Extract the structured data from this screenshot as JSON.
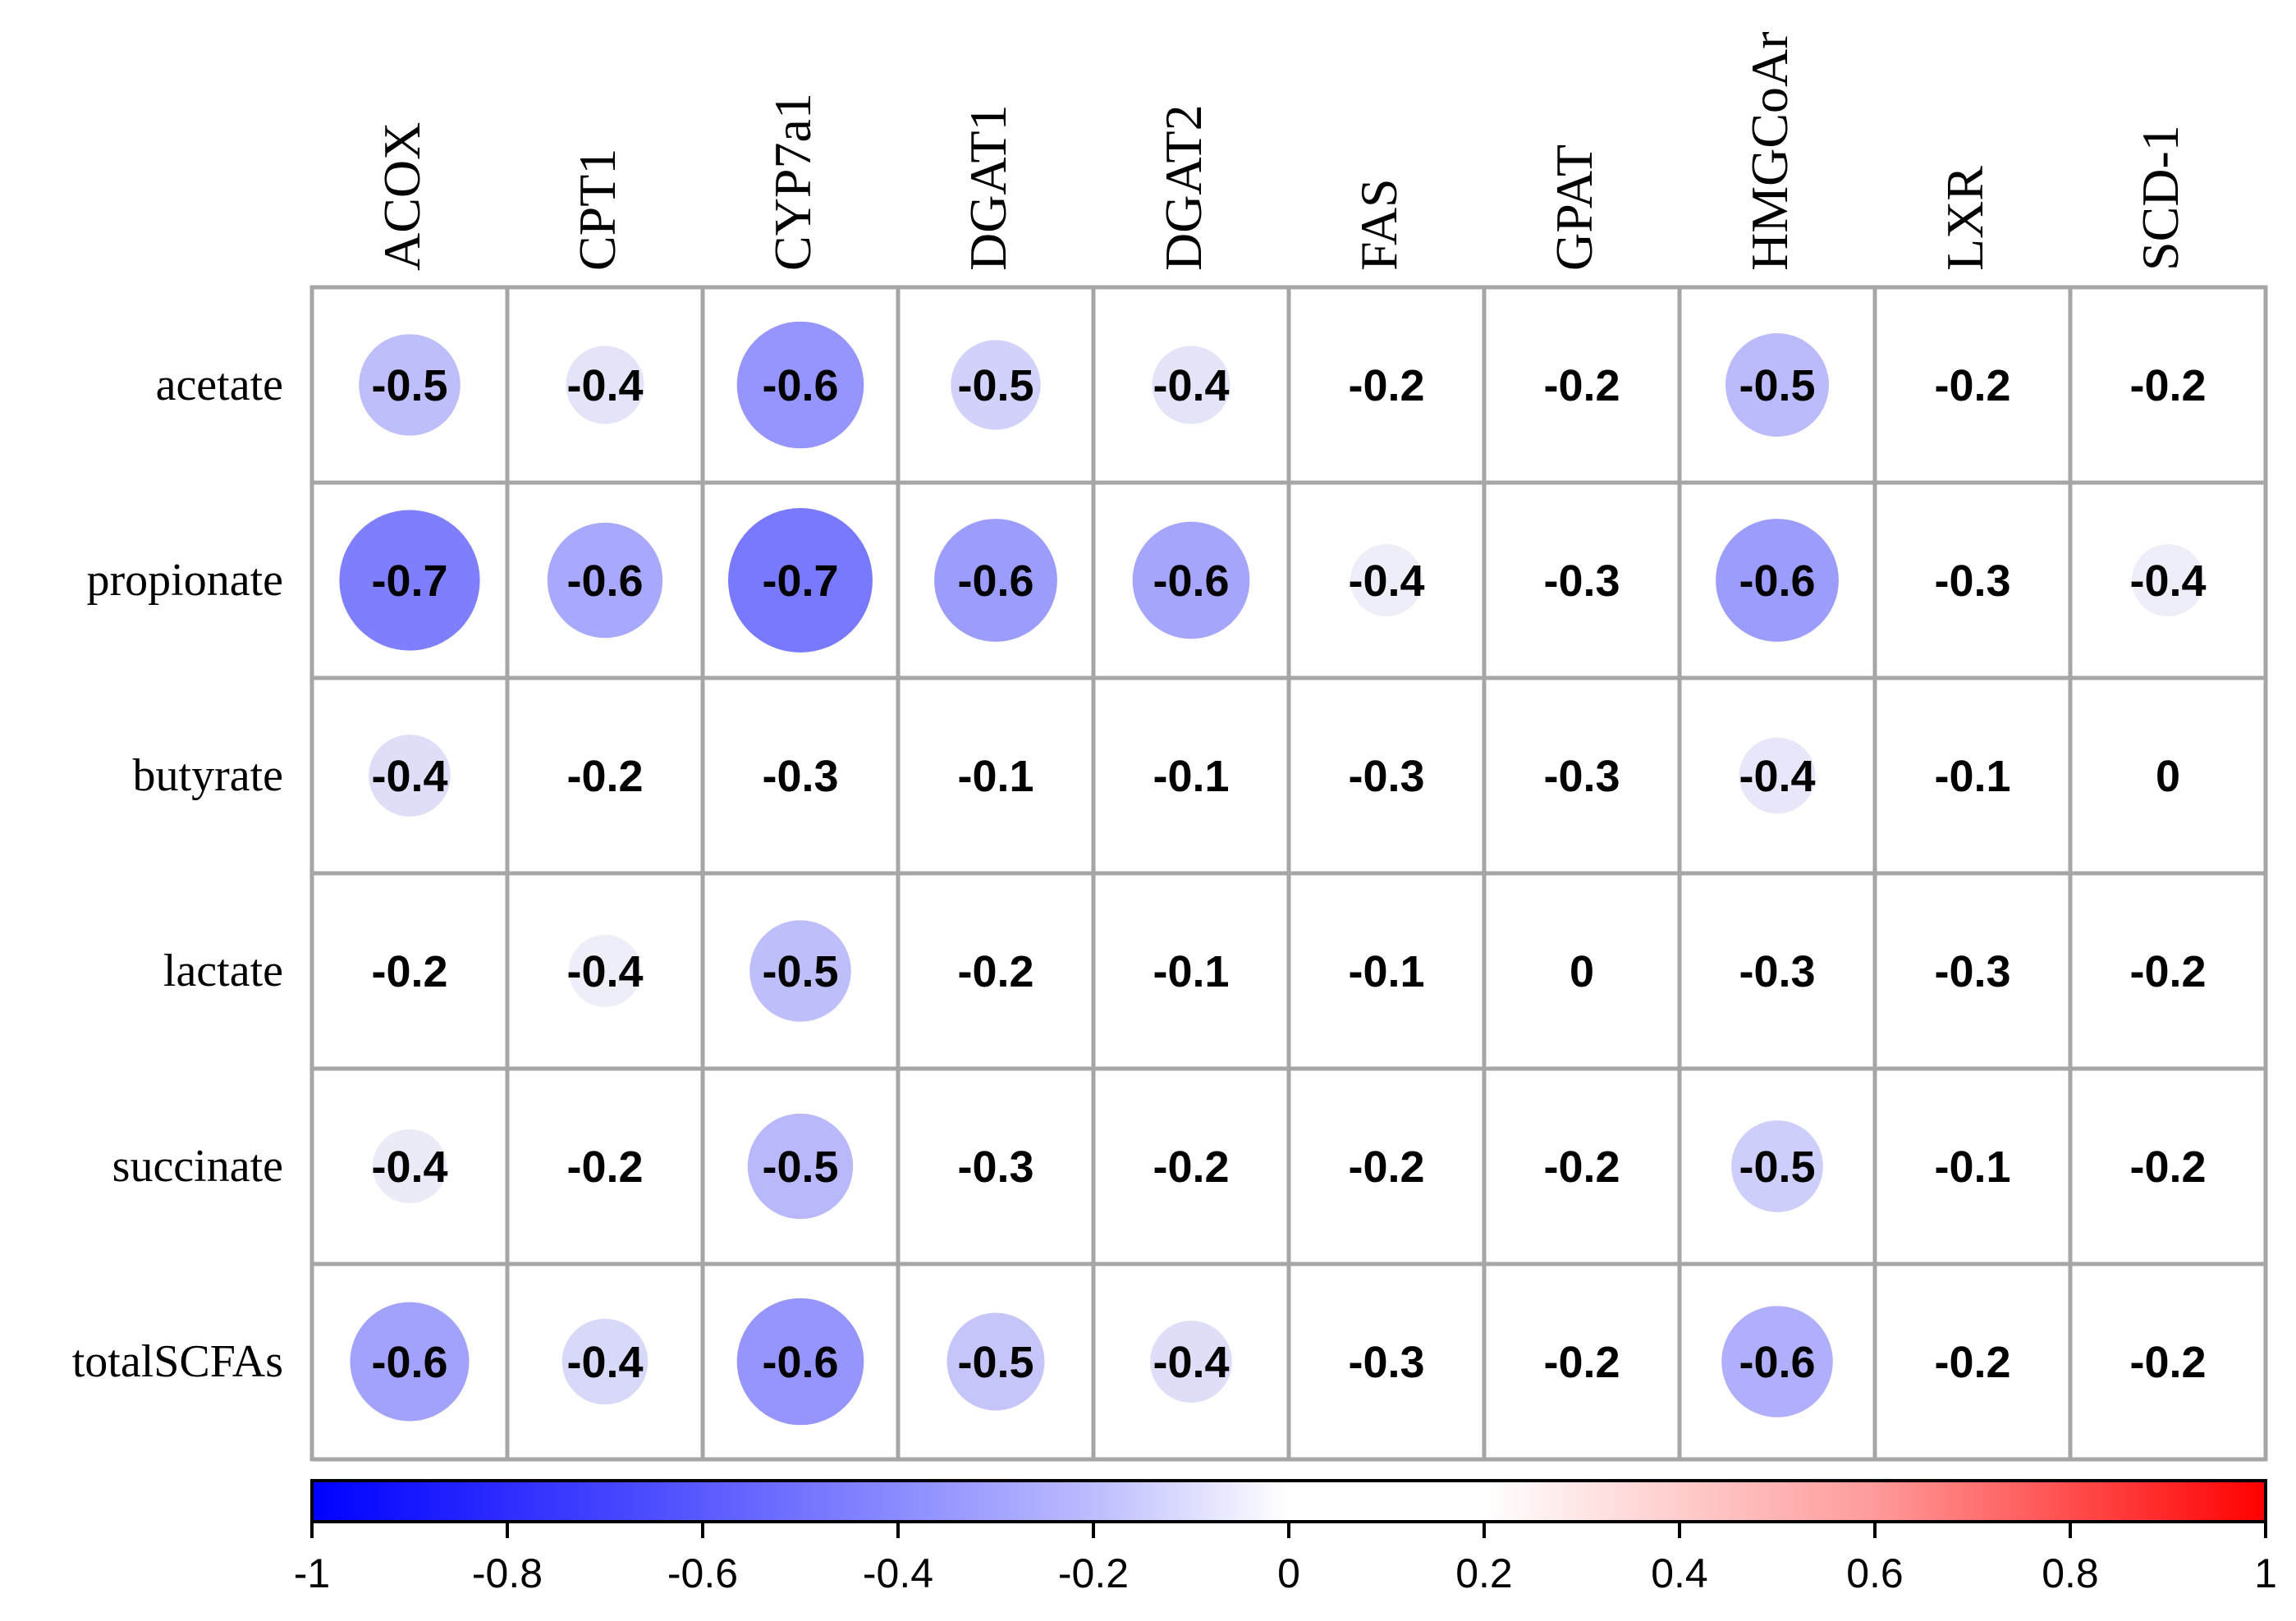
{
  "chart_data": {
    "type": "heatmap",
    "title": "",
    "columns": [
      "ACOX",
      "CPT1",
      "CYP7a1",
      "DGAT1",
      "DGAT2",
      "FAS",
      "GPAT",
      "HMGCoAr",
      "LXR",
      "SCD-1"
    ],
    "rows": [
      "acetate",
      "propionate",
      "butyrate",
      "lactate",
      "succinate",
      "totalSCFAs"
    ],
    "values": [
      [
        -0.5,
        -0.4,
        -0.6,
        -0.5,
        -0.4,
        -0.2,
        -0.2,
        -0.5,
        -0.2,
        -0.2
      ],
      [
        -0.7,
        -0.6,
        -0.7,
        -0.6,
        -0.6,
        -0.4,
        -0.3,
        -0.6,
        -0.3,
        -0.4
      ],
      [
        -0.4,
        -0.2,
        -0.3,
        -0.1,
        -0.1,
        -0.3,
        -0.3,
        -0.4,
        -0.1,
        0
      ],
      [
        -0.2,
        -0.4,
        -0.5,
        -0.2,
        -0.1,
        -0.1,
        0,
        -0.3,
        -0.3,
        -0.2
      ],
      [
        -0.4,
        -0.2,
        -0.5,
        -0.3,
        -0.2,
        -0.2,
        -0.2,
        -0.5,
        -0.1,
        -0.2
      ],
      [
        -0.6,
        -0.4,
        -0.6,
        -0.5,
        -0.4,
        -0.3,
        -0.2,
        -0.6,
        -0.2,
        -0.2
      ]
    ],
    "circle_magnitudes": [
      [
        0.52,
        0.4,
        0.65,
        0.46,
        0.4,
        0,
        0,
        0.53,
        0,
        0
      ],
      [
        0.72,
        0.59,
        0.74,
        0.63,
        0.6,
        0.37,
        0,
        0.63,
        0,
        0.37
      ],
      [
        0.42,
        0,
        0,
        0,
        0,
        0,
        0,
        0.39,
        0,
        0
      ],
      [
        0,
        0.37,
        0.52,
        0,
        0,
        0,
        0,
        0,
        0,
        0
      ],
      [
        0.38,
        0,
        0.54,
        0,
        0,
        0,
        0,
        0.47,
        0,
        0
      ],
      [
        0.61,
        0.44,
        0.65,
        0.5,
        0.42,
        0,
        0,
        0.57,
        0,
        0
      ]
    ],
    "colorbar": {
      "range": [
        -1,
        1
      ],
      "ticks": [
        "-1",
        "-0.8",
        "-0.6",
        "-0.4",
        "-0.2",
        "0",
        "0.2",
        "0.4",
        "0.6",
        "0.8",
        "1"
      ],
      "negative_color": "#0000ff",
      "positive_color": "#ff0000",
      "neutral_color": "#ffffff"
    },
    "grid_color": "#a6a6a6"
  }
}
